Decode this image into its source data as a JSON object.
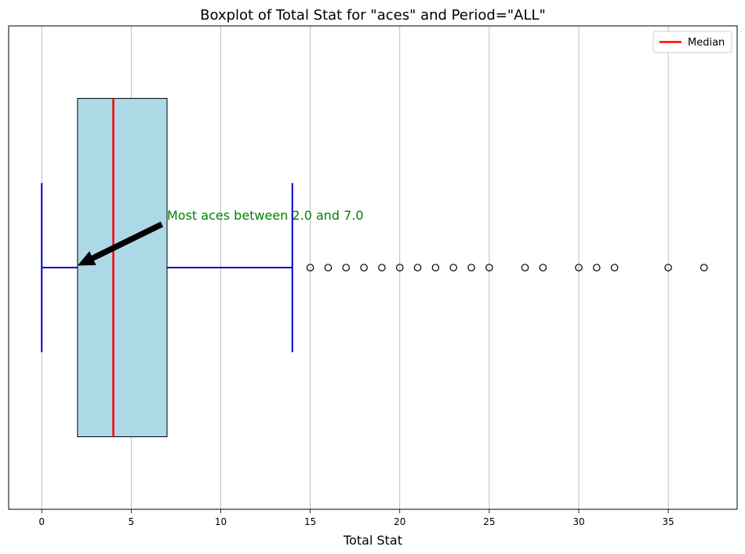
{
  "chart_data": {
    "type": "boxplot",
    "title": "Boxplot of Total Stat for \"aces\" and Period=\"ALL\"",
    "xlabel": "Total Stat",
    "ylabel": "",
    "xlim": [
      -1.85,
      38.85
    ],
    "xticks": [
      0,
      5,
      10,
      15,
      20,
      25,
      30,
      35
    ],
    "grid": "x",
    "legend": {
      "position": "top-right",
      "entries": [
        {
          "label": "Median",
          "color": "#ff0000"
        }
      ]
    },
    "box": {
      "whisker_low": 0,
      "q1": 2,
      "median": 4,
      "q3": 7,
      "whisker_high": 14,
      "outliers": [
        15,
        16,
        17,
        18,
        19,
        20,
        21,
        22,
        23,
        24,
        25,
        27,
        28,
        30,
        31,
        32,
        35,
        37
      ]
    },
    "annotation": {
      "text": "Most aces between 2.0 and 7.0",
      "text_x": 7.0,
      "arrow_target_x": 2.0
    },
    "colors": {
      "box_fill": "#add8e6",
      "box_edge": "#000000",
      "median": "#ff0000",
      "whisker": "#0000cd",
      "annotation": "#008000",
      "grid": "#b0b0b0"
    }
  }
}
